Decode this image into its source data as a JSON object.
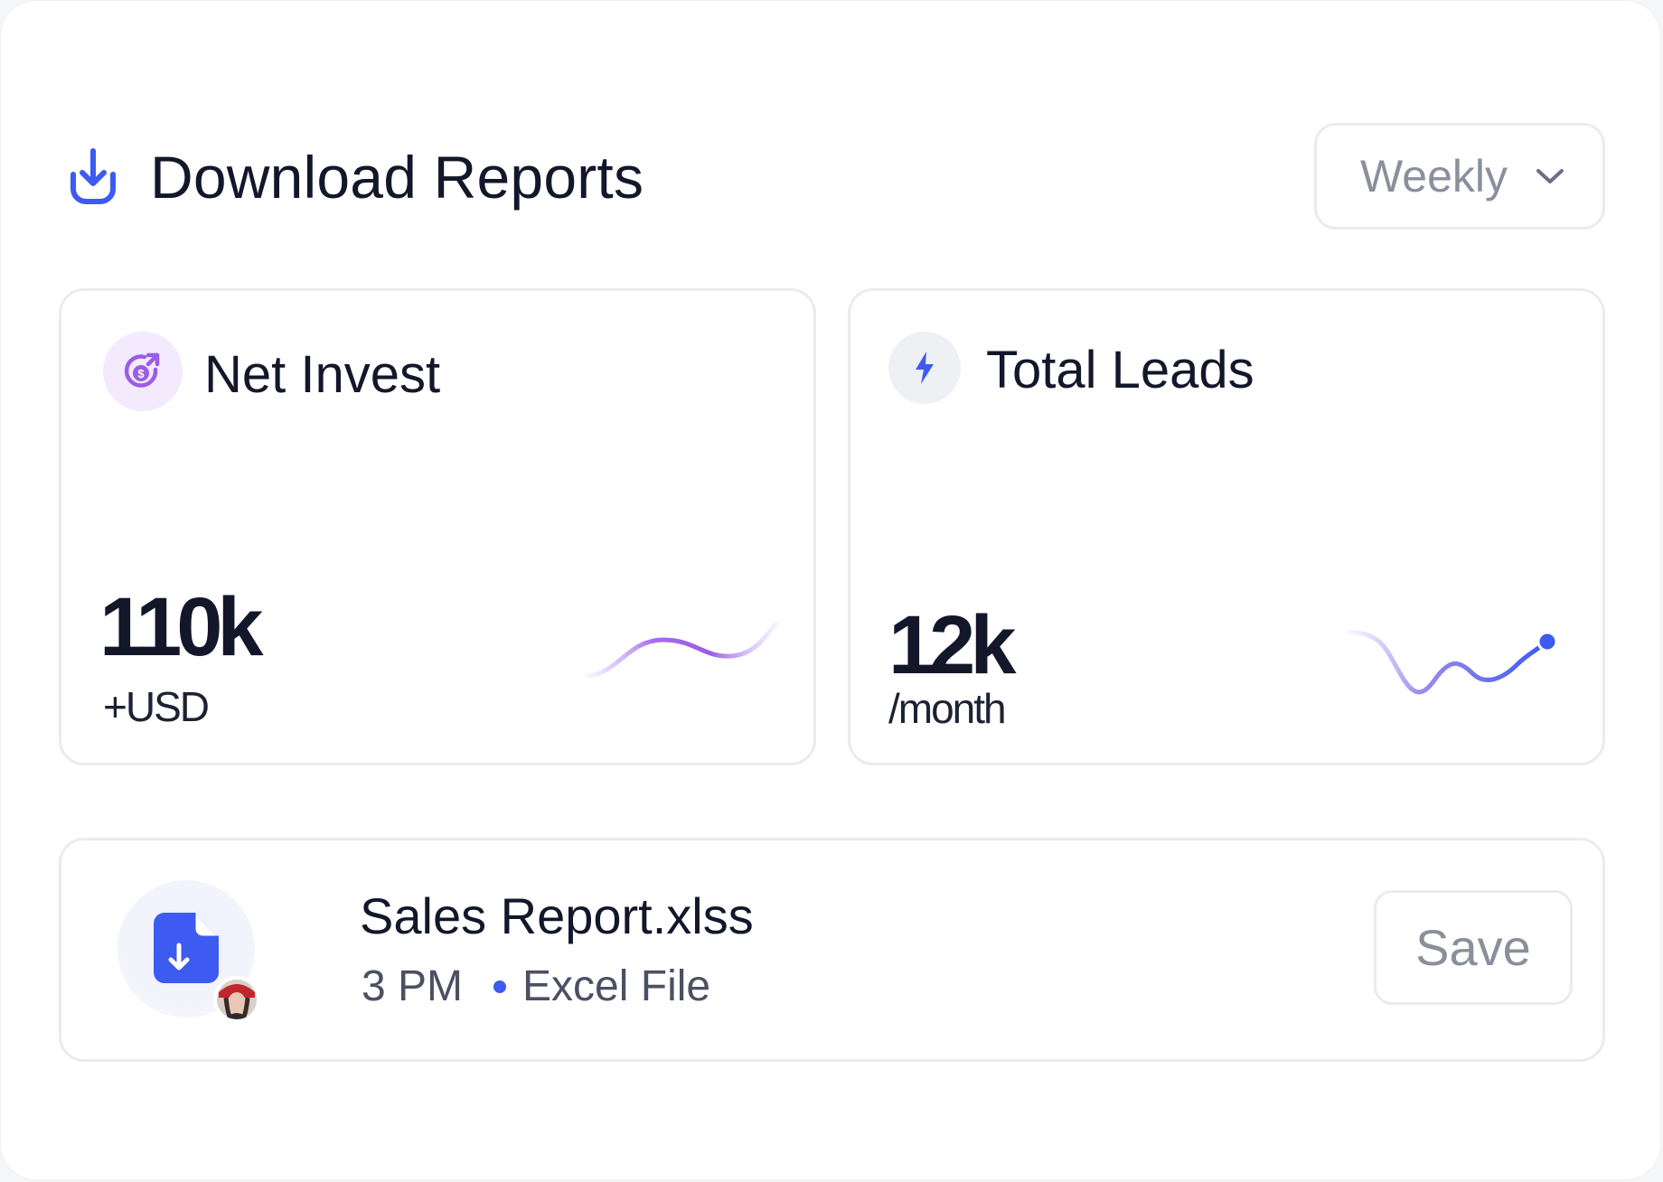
{
  "header": {
    "title": "Download Reports",
    "icon": "download-icon",
    "period_select": {
      "selected": "Weekly"
    }
  },
  "metrics": [
    {
      "title": "Net Invest",
      "icon": "dollar-growth-icon",
      "value": "110k",
      "unit": "+USD",
      "accent_color": "#9b5de5"
    },
    {
      "title": "Total Leads",
      "icon": "lightning-icon",
      "value": "12k",
      "unit": "/month",
      "accent_color": "#3d5af1"
    }
  ],
  "file": {
    "name": "Sales Report.xlss",
    "time": "3 PM",
    "type": "Excel File",
    "icon": "file-download-icon",
    "save_label": "Save"
  },
  "colors": {
    "primary": "#3d5af1",
    "purple": "#9b5de5",
    "text_dark": "#12172a",
    "text_muted": "#8a8f9c",
    "border": "#e9ebf0"
  }
}
